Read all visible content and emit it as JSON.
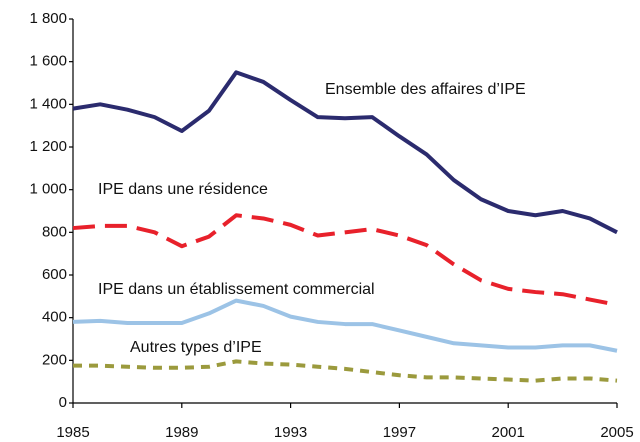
{
  "chart_data": {
    "type": "line",
    "x": [
      1985,
      1986,
      1987,
      1988,
      1989,
      1990,
      1991,
      1992,
      1993,
      1994,
      1995,
      1996,
      1997,
      1998,
      1999,
      2000,
      2001,
      2002,
      2003,
      2004,
      2005
    ],
    "xlim": [
      1985,
      2005
    ],
    "xticks": [
      1985,
      1989,
      1993,
      1997,
      2001,
      2005
    ],
    "ylim": [
      0,
      1800
    ],
    "yticks": [
      0,
      200,
      400,
      600,
      800,
      {
        "value": 1000,
        "label": "1 000"
      },
      {
        "value": 1200,
        "label": "1 200"
      },
      {
        "value": 1400,
        "label": "1 400"
      },
      {
        "value": 1600,
        "label": "1 600"
      },
      {
        "value": 1800,
        "label": "1 800"
      }
    ],
    "series": [
      {
        "name": "Ensemble des affaires d’IPE",
        "color": "#2b2b6e",
        "style": "solid",
        "values": [
          1380,
          1400,
          1375,
          1340,
          1275,
          1370,
          1550,
          1505,
          1420,
          1340,
          1335,
          1340,
          1250,
          1165,
          1045,
          955,
          900,
          880,
          900,
          865,
          800
        ]
      },
      {
        "name": "IPE dans une résidence",
        "color": "#e8212b",
        "style": "dashed",
        "values": [
          820,
          830,
          830,
          800,
          735,
          780,
          880,
          865,
          835,
          785,
          800,
          815,
          785,
          740,
          650,
          575,
          535,
          520,
          510,
          485,
          460
        ]
      },
      {
        "name": "IPE dans un établissement commercial",
        "color": "#9cc3e6",
        "style": "solid",
        "values": [
          380,
          385,
          375,
          375,
          375,
          420,
          480,
          455,
          405,
          380,
          370,
          370,
          340,
          310,
          280,
          270,
          260,
          260,
          270,
          270,
          245
        ]
      },
      {
        "name": "Autres types d’IPE",
        "color": "#9b9a3d",
        "style": "dotted",
        "values": [
          175,
          175,
          170,
          165,
          165,
          170,
          195,
          185,
          180,
          170,
          160,
          145,
          130,
          120,
          120,
          115,
          110,
          105,
          115,
          115,
          105
        ]
      }
    ]
  }
}
